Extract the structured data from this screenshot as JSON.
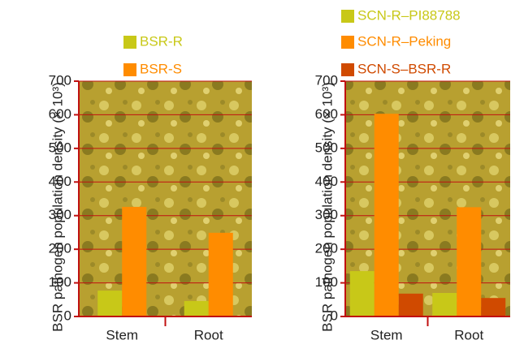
{
  "chart_data": [
    {
      "type": "bar",
      "y_label": "BSR pathogen population density (× 10³)",
      "categories": [
        "Stem",
        "Root"
      ],
      "series": [
        {
          "name": "BSR-R",
          "color": "#c8c818",
          "values": [
            77,
            46
          ]
        },
        {
          "name": "BSR-S",
          "color": "#ff8c00",
          "values": [
            326,
            249
          ]
        }
      ],
      "ylim": [
        0,
        700
      ],
      "yticks": [
        0,
        100,
        200,
        300,
        400,
        500,
        600,
        700
      ],
      "grid": true
    },
    {
      "type": "bar",
      "y_label": "BSR pathogen population density (× 10³)",
      "categories": [
        "Stem",
        "Root"
      ],
      "series": [
        {
          "name": "SCN-R–PI88788",
          "color": "#c8c818",
          "values": [
            135,
            70
          ]
        },
        {
          "name": "SCN-R–Peking",
          "color": "#ff8c00",
          "values": [
            603,
            325
          ]
        },
        {
          "name": "SCN-S–BSR-R",
          "color": "#d04a00",
          "values": [
            68,
            55
          ]
        }
      ],
      "ylim": [
        0,
        700
      ],
      "yticks": [
        0,
        100,
        200,
        300,
        400,
        500,
        600,
        700
      ],
      "grid": true
    }
  ]
}
